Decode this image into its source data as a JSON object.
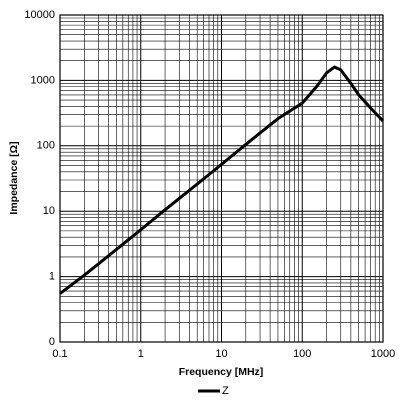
{
  "chart_data": {
    "type": "line",
    "x_label": "Frequency [MHz]",
    "y_label": "Impedance [Ω]",
    "x": [
      0.1,
      0.2,
      0.5,
      1,
      2,
      5,
      10,
      20,
      50,
      100,
      150,
      200,
      250,
      300,
      400,
      500,
      700,
      1000
    ],
    "series": [
      {
        "name": "Z",
        "color": "#000000",
        "values": [
          0.55,
          1.05,
          2.6,
          5.2,
          10.5,
          26,
          52,
          105,
          260,
          450,
          800,
          1300,
          1600,
          1450,
          900,
          600,
          380,
          240
        ]
      }
    ],
    "xlim": [
      0.1,
      1000
    ],
    "xticks": [
      0.1,
      1,
      10,
      100,
      1000
    ],
    "ylim": [
      0.1,
      10000
    ],
    "yticks": [
      {
        "value": 0.1,
        "label": "0"
      },
      1,
      10,
      100,
      1000,
      10000
    ],
    "x_log": true,
    "y_log": true,
    "grid": true,
    "minor_grid": true,
    "legend": "bottom"
  }
}
